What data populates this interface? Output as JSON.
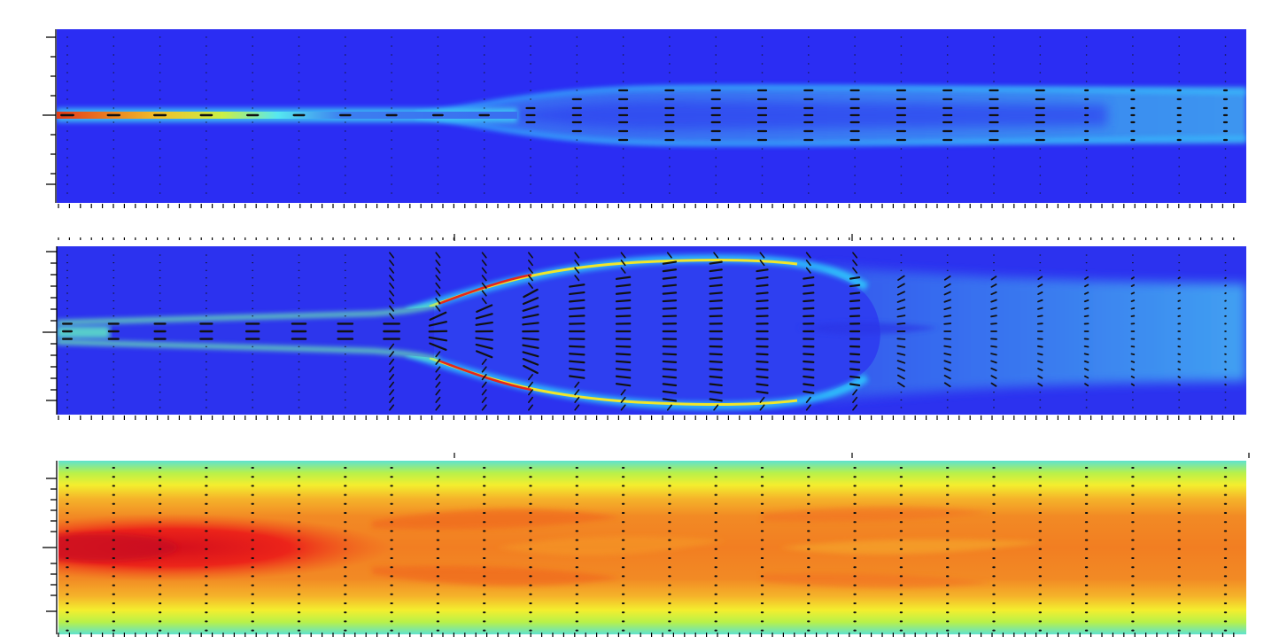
{
  "figure": {
    "panels": [
      {
        "id": "panel-top",
        "field": "jet-velocity-magnitude",
        "background": "#2a2cf4",
        "mid_color": "#3a63ee",
        "edge_glow": "#38d0ff",
        "hot_color": "#f03414",
        "warm_color": "#f2e422",
        "description_visible": false
      },
      {
        "id": "panel-middle",
        "field": "jet-velocity-magnitude",
        "background": "#2b2ff0",
        "inner_color": "#3a5cf0",
        "edge_glow": "#2fd2ff",
        "hot_color": "#e8241a",
        "warm_color": "#f1ec2a"
      },
      {
        "id": "panel-bottom",
        "field": "temperature",
        "core_color": "#e4141e",
        "hot_color": "#f2671e",
        "warm_color": "#f4a22a",
        "yellow_color": "#f3ee2e",
        "edge_color": "#5ee1d2"
      }
    ],
    "arrow_color": "#111111",
    "axis_color": "#000000"
  }
}
